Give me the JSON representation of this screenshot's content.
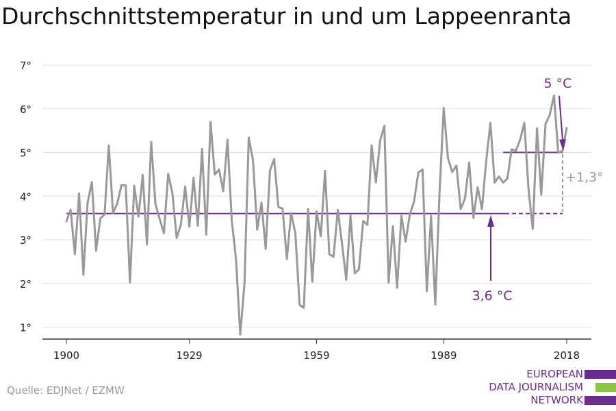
{
  "page": {
    "title": "Durchschnittstemperatur in und um Lappeenranta",
    "source": "Quelle: EDJNet / EZMW",
    "logo": {
      "line1": "EUROPEAN",
      "line2": "DATA JOURNALISM",
      "line3": "NETWORK",
      "colors": [
        "#6b2c91",
        "#8cc63f",
        "#6b2c91"
      ]
    }
  },
  "chart_data": {
    "type": "line",
    "title": "Durchschnittstemperatur in und um Lappeenranta",
    "xlabel": "",
    "ylabel": "",
    "xlim": [
      1900,
      2018
    ],
    "ylim": [
      0.8,
      7
    ],
    "grid": true,
    "xticks": [
      1900,
      1929,
      1959,
      1989,
      2018
    ],
    "yticks": [
      1,
      2,
      3,
      4,
      5,
      6,
      7
    ],
    "ytick_labels": [
      "1°",
      "2°",
      "3°",
      "4°",
      "5°",
      "6°",
      "7°"
    ],
    "x_tick_labels": [
      "1900",
      "1929",
      "1959",
      "1989",
      "2018"
    ],
    "series": [
      {
        "color": "#999999",
        "x": [
          1900,
          1901,
          1902,
          1903,
          1904,
          1905,
          1906,
          1907,
          1908,
          1909,
          1910,
          1911,
          1912,
          1913,
          1914,
          1915,
          1916,
          1917,
          1918,
          1919,
          1920,
          1921,
          1922,
          1923,
          1924,
          1925,
          1926,
          1927,
          1928,
          1929,
          1930,
          1931,
          1932,
          1933,
          1934,
          1935,
          1936,
          1937,
          1938,
          1939,
          1940,
          1941,
          1942,
          1943,
          1944,
          1945,
          1946,
          1947,
          1948,
          1949,
          1950,
          1951,
          1952,
          1953,
          1954,
          1955,
          1956,
          1957,
          1958,
          1959,
          1960,
          1961,
          1962,
          1963,
          1964,
          1965,
          1966,
          1967,
          1968,
          1969,
          1970,
          1971,
          1972,
          1973,
          1974,
          1975,
          1976,
          1977,
          1978,
          1979,
          1980,
          1981,
          1982,
          1983,
          1984,
          1985,
          1986,
          1987,
          1988,
          1989,
          1990,
          1991,
          1992,
          1993,
          1994,
          1995,
          1996,
          1997,
          1998,
          1999,
          2000,
          2001,
          2002,
          2003,
          2004,
          2005,
          2006,
          2007,
          2008,
          2009,
          2010,
          2011,
          2012,
          2013,
          2014,
          2015,
          2016,
          2017,
          2018
        ],
        "y": [
          3.42,
          3.69,
          2.67,
          4.06,
          2.2,
          3.85,
          4.32,
          2.75,
          3.49,
          3.58,
          5.16,
          3.61,
          3.83,
          4.25,
          4.24,
          2.02,
          4.24,
          3.53,
          4.49,
          2.89,
          5.24,
          3.82,
          3.47,
          3.15,
          4.51,
          4.06,
          3.04,
          3.35,
          4.22,
          3.3,
          4.42,
          3.32,
          5.08,
          3.12,
          5.7,
          4.49,
          4.61,
          4.11,
          5.29,
          3.45,
          2.56,
          0.83,
          2.0,
          5.34,
          4.82,
          3.23,
          3.85,
          2.79,
          4.58,
          4.85,
          3.75,
          3.71,
          2.56,
          3.61,
          3.15,
          1.51,
          1.44,
          3.7,
          2.04,
          3.65,
          3.08,
          4.58,
          2.67,
          2.61,
          3.68,
          2.91,
          2.08,
          3.56,
          2.23,
          2.32,
          3.43,
          3.34,
          5.16,
          4.31,
          5.27,
          5.61,
          2.02,
          3.31,
          1.9,
          3.55,
          2.96,
          3.58,
          3.88,
          4.54,
          4.61,
          1.82,
          3.55,
          1.52,
          4.08,
          6.02,
          4.87,
          4.55,
          4.7,
          3.7,
          3.94,
          4.77,
          3.5,
          4.2,
          3.7,
          4.79,
          5.68,
          4.31,
          4.45,
          4.31,
          4.4,
          5.07,
          5.04,
          5.29,
          5.68,
          4.15,
          3.25,
          5.55,
          4.03,
          5.65,
          5.86,
          6.3,
          4.99,
          5.04,
          5.56
        ]
      }
    ],
    "reference_lines": [
      {
        "value": 3.6,
        "label": "3,6 °C",
        "color": "#6b2c91",
        "x_from": 1900,
        "x_to": 2018,
        "dashed_from": 2003
      },
      {
        "value": 5.0,
        "label": "5 °C",
        "color": "#6b2c91",
        "x_from": 2003,
        "x_to": 2018
      }
    ],
    "annotations": [
      {
        "text": "5 °C",
        "color": "#6b2c91"
      },
      {
        "text": "3,6 °C",
        "color": "#6b2c91"
      },
      {
        "text": "+1,3°",
        "color": "#999999"
      }
    ]
  }
}
